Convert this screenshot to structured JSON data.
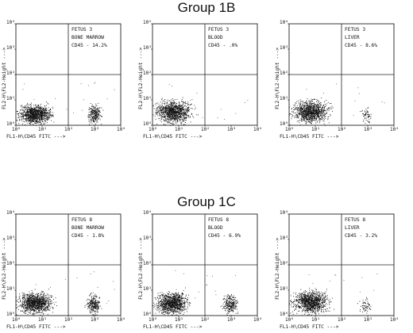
{
  "groups": [
    {
      "title": "Group 1B",
      "panels": [
        {
          "fetus": "FETUS 3",
          "tissue": "BONE MARROW",
          "cd45": "CD45 - 14.2%"
        },
        {
          "fetus": "FETUS 3",
          "tissue": "BLOOD",
          "cd45": "CD45 - .0%"
        },
        {
          "fetus": "FETUS 3",
          "tissue": "LIVER",
          "cd45": "CD45 - 8.6%"
        }
      ]
    },
    {
      "title": "Group 1C",
      "panels": [
        {
          "fetus": "FETUS 8",
          "tissue": "BONE MARROW",
          "cd45": "CD45 - 1.8%"
        },
        {
          "fetus": "FETUS 8",
          "tissue": "BLOOD",
          "cd45": "CD45 - 6.9%"
        },
        {
          "fetus": "FETUS 8",
          "tissue": "LIVER",
          "cd45": "CD45 - 3.2%"
        }
      ]
    }
  ],
  "chart_data": [
    {
      "type": "scatter",
      "title": "FETUS 3 BONE MARROW",
      "annotation": "CD45 - 14.2%",
      "xlabel": "FL1-H\\CD45 FITC --->",
      "ylabel": "FL2-H\\FL2-Height --->",
      "xscale": "log",
      "yscale": "log",
      "xlim": [
        1,
        10000
      ],
      "ylim": [
        1,
        10000
      ],
      "xticks": [
        "10⁰",
        "10¹",
        "10²",
        "10³",
        "10⁴"
      ],
      "yticks": [
        "10⁰",
        "10¹",
        "10²",
        "10³",
        "10⁴"
      ],
      "quadrant_gate": {
        "x": 100,
        "y": 100
      },
      "populations": [
        {
          "x_range": [
            1,
            30
          ],
          "y_range": [
            1,
            8
          ],
          "density": "high"
        },
        {
          "x_range": [
            500,
            2000
          ],
          "y_range": [
            1,
            8
          ],
          "density": "medium"
        }
      ]
    },
    {
      "type": "scatter",
      "title": "FETUS 3 BLOOD",
      "annotation": "CD45 - .0%",
      "xlabel": "FL1-H\\CD45 FITC --->",
      "ylabel": "FL2-H\\FL2-Height --->",
      "xscale": "log",
      "yscale": "log",
      "xlim": [
        1,
        10000
      ],
      "ylim": [
        1,
        10000
      ],
      "xticks": [
        "10⁰",
        "10¹",
        "10²",
        "10³",
        "10⁴"
      ],
      "yticks": [
        "10⁰",
        "10¹",
        "10²",
        "10³",
        "10⁴"
      ],
      "quadrant_gate": {
        "x": 100,
        "y": 100
      },
      "populations": [
        {
          "x_range": [
            1,
            40
          ],
          "y_range": [
            1,
            12
          ],
          "density": "high"
        }
      ]
    },
    {
      "type": "scatter",
      "title": "FETUS 3 LIVER",
      "annotation": "CD45 - 8.6%",
      "xlabel": "FL1-H\\CD45 FITC --->",
      "ylabel": "FL2-H\\FL2-Height --->",
      "xscale": "log",
      "yscale": "log",
      "xlim": [
        1,
        10000
      ],
      "ylim": [
        1,
        10000
      ],
      "xticks": [
        "10⁰",
        "10¹",
        "10²",
        "10³",
        "10⁴"
      ],
      "yticks": [
        "10⁰",
        "10¹",
        "10²",
        "10³",
        "10⁴"
      ],
      "quadrant_gate": {
        "x": 100,
        "y": 100
      },
      "populations": [
        {
          "x_range": [
            1,
            40
          ],
          "y_range": [
            1,
            12
          ],
          "density": "high"
        },
        {
          "x_range": [
            500,
            1500
          ],
          "y_range": [
            1,
            6
          ],
          "density": "low"
        }
      ]
    },
    {
      "type": "scatter",
      "title": "FETUS 8 BONE MARROW",
      "annotation": "CD45 - 1.8%",
      "xlabel": "FL1-H\\CD45 FITC --->",
      "ylabel": "FL2-H\\FL2-Height --->",
      "xscale": "log",
      "yscale": "log",
      "xlim": [
        1,
        10000
      ],
      "ylim": [
        1,
        10000
      ],
      "xticks": [
        "10⁰",
        "10¹",
        "10²",
        "10³",
        "10⁴"
      ],
      "yticks": [
        "10⁰",
        "10¹",
        "10²",
        "10³",
        "10⁴"
      ],
      "quadrant_gate": {
        "x": 100,
        "y": 100
      },
      "populations": [
        {
          "x_range": [
            1,
            30
          ],
          "y_range": [
            1,
            10
          ],
          "density": "high"
        },
        {
          "x_range": [
            400,
            2000
          ],
          "y_range": [
            1,
            8
          ],
          "density": "medium"
        }
      ]
    },
    {
      "type": "scatter",
      "title": "FETUS 8 BLOOD",
      "annotation": "CD45 - 6.9%",
      "xlabel": "FL1-H\\CD45 FITC --->",
      "ylabel": "FL2-H\\FL2-Height --->",
      "xscale": "log",
      "yscale": "log",
      "xlim": [
        1,
        10000
      ],
      "ylim": [
        1,
        10000
      ],
      "xticks": [
        "10⁰",
        "10¹",
        "10²",
        "10³",
        "10⁴"
      ],
      "yticks": [
        "10⁰",
        "10¹",
        "10²",
        "10³",
        "10⁴"
      ],
      "quadrant_gate": {
        "x": 100,
        "y": 100
      },
      "populations": [
        {
          "x_range": [
            1,
            30
          ],
          "y_range": [
            1,
            10
          ],
          "density": "high"
        },
        {
          "x_range": [
            400,
            2000
          ],
          "y_range": [
            1,
            8
          ],
          "density": "medium"
        }
      ]
    },
    {
      "type": "scatter",
      "title": "FETUS 8 LIVER",
      "annotation": "CD45 - 3.2%",
      "xlabel": "FL1-H\\CD45 FITC --->",
      "ylabel": "FL2-H\\FL2-Height --->",
      "xscale": "log",
      "yscale": "log",
      "xlim": [
        1,
        10000
      ],
      "ylim": [
        1,
        10000
      ],
      "xticks": [
        "10⁰",
        "10¹",
        "10²",
        "10³",
        "10⁴"
      ],
      "yticks": [
        "10⁰",
        "10¹",
        "10²",
        "10³",
        "10⁴"
      ],
      "quadrant_gate": {
        "x": 100,
        "y": 100
      },
      "populations": [
        {
          "x_range": [
            1,
            40
          ],
          "y_range": [
            1,
            12
          ],
          "density": "high"
        },
        {
          "x_range": [
            400,
            1500
          ],
          "y_range": [
            1,
            6
          ],
          "density": "low"
        }
      ]
    }
  ]
}
